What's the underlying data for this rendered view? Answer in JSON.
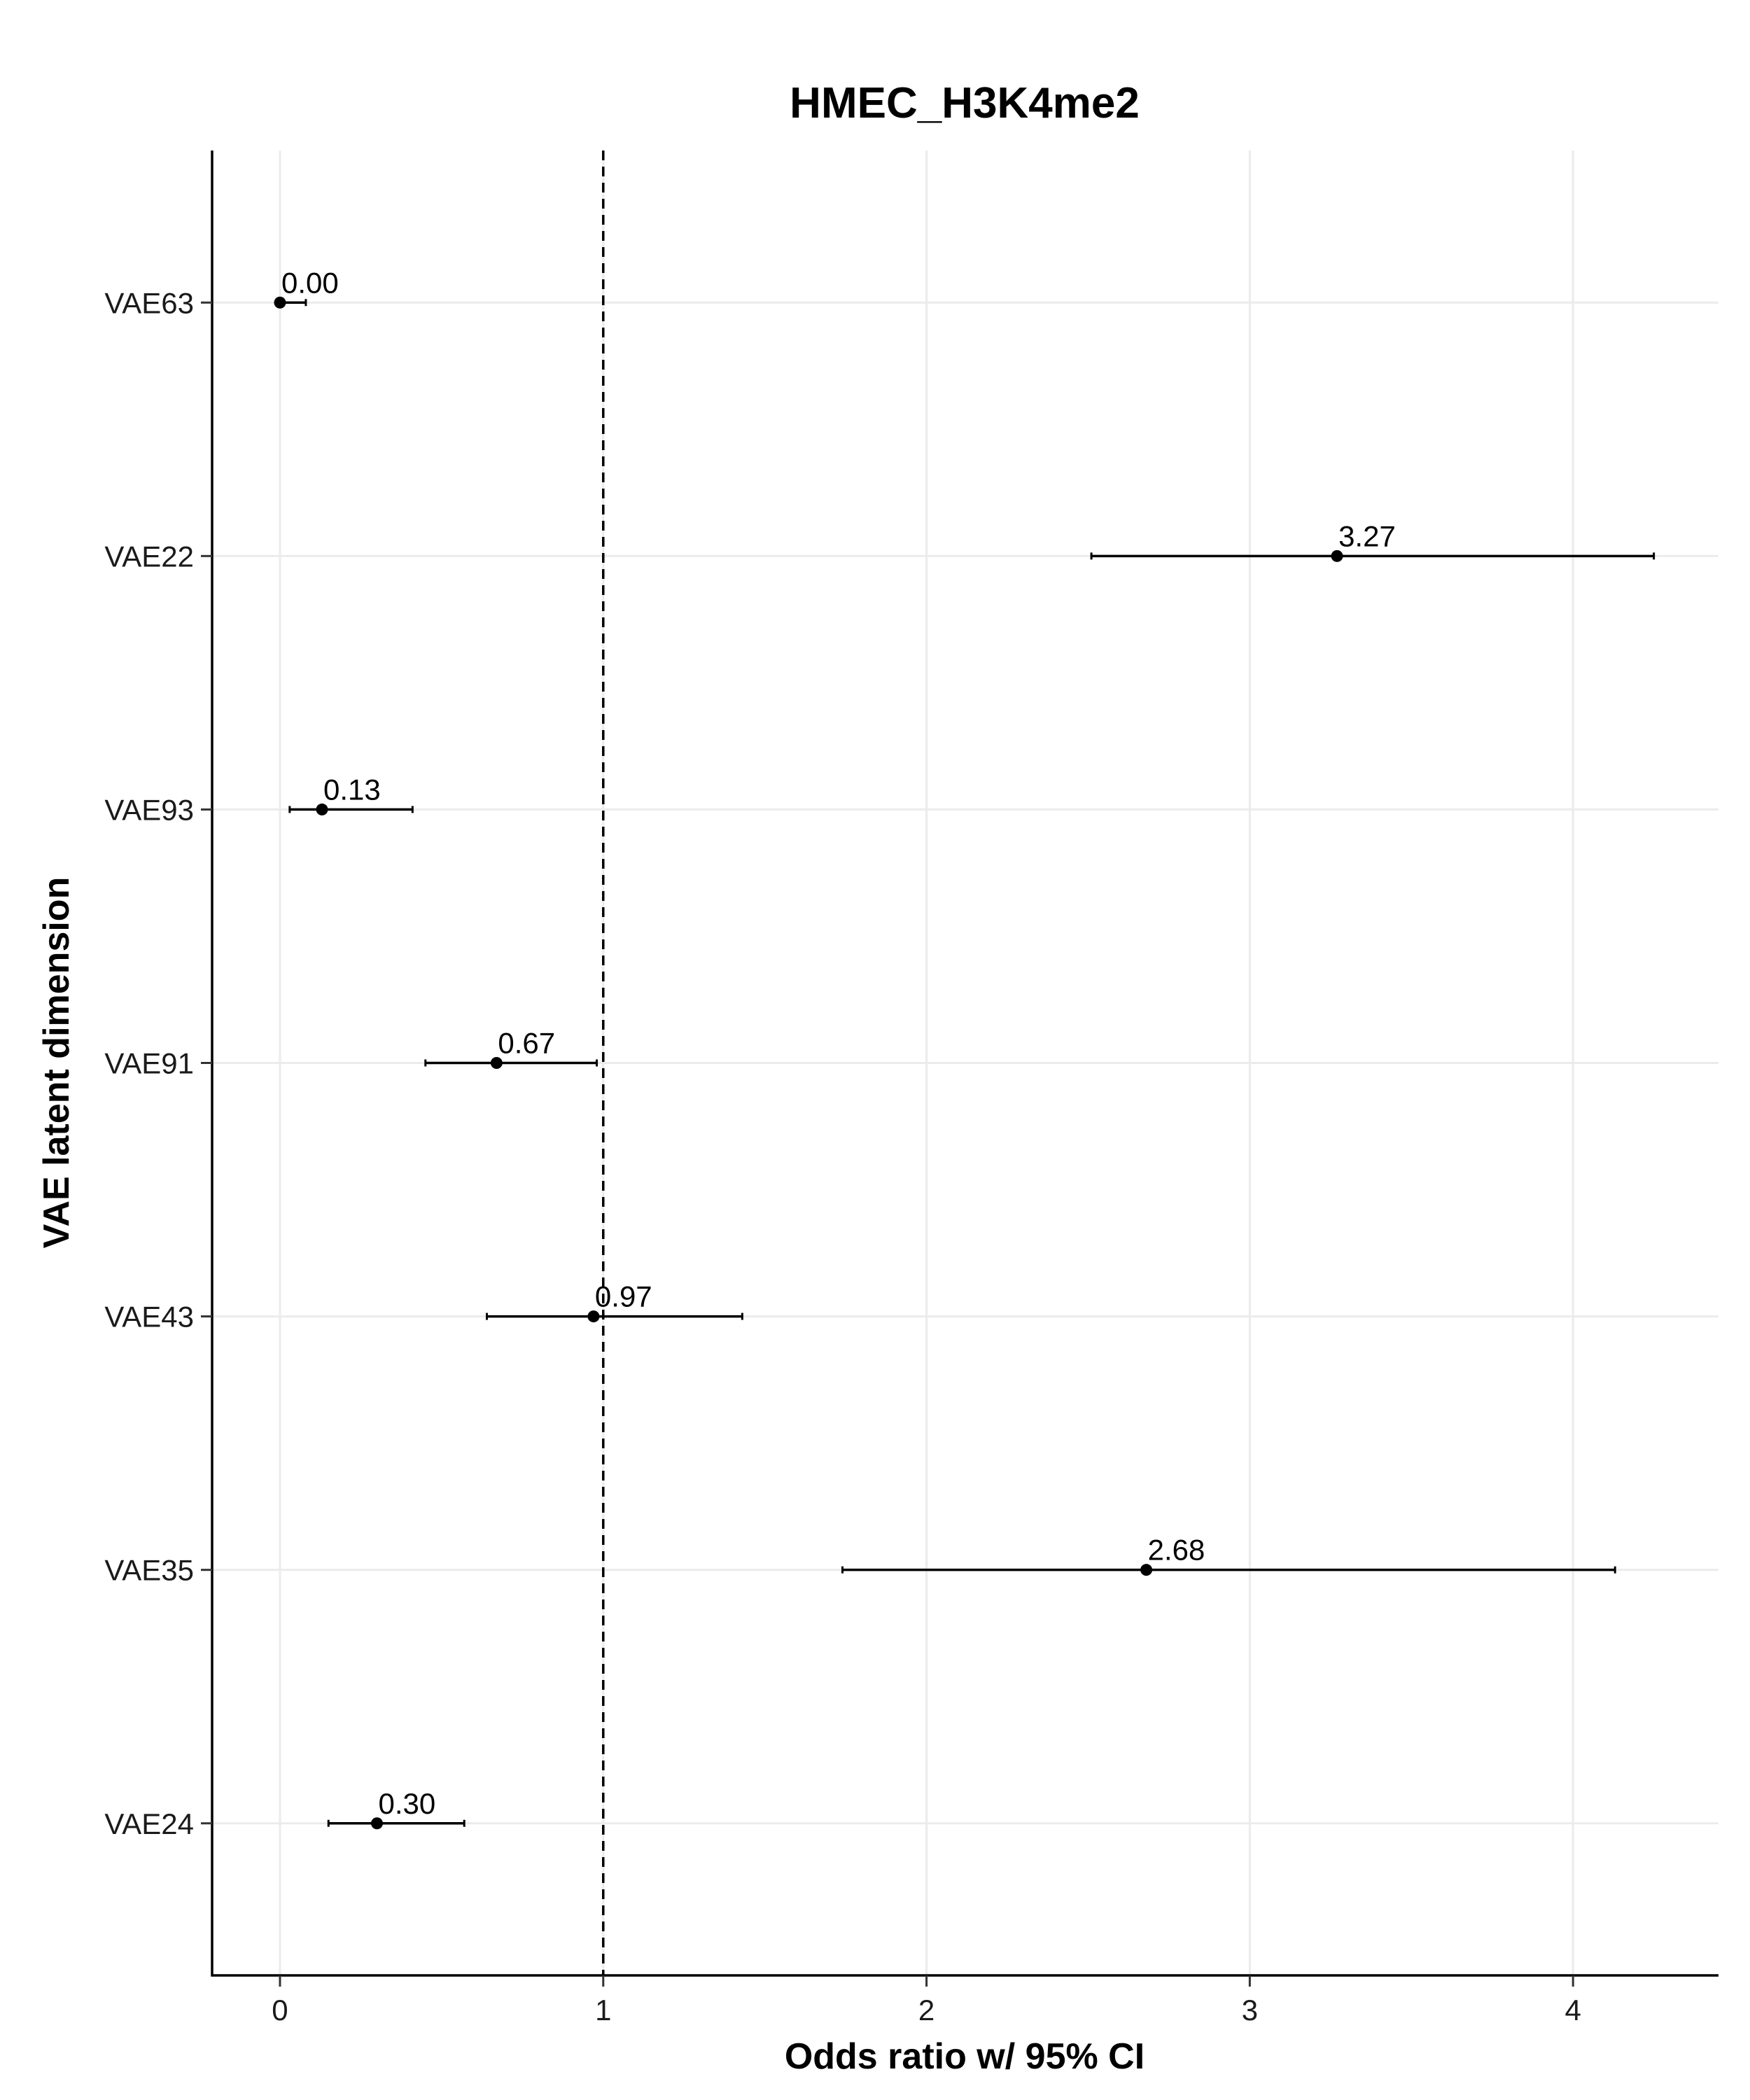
{
  "chart_data": {
    "type": "scatter",
    "title": "HMEC_H3K4me2",
    "xlabel": "Odds ratio w/ 95% CI",
    "ylabel": "VAE latent dimension",
    "xlim": [
      -0.21,
      4.45
    ],
    "x_ticks": [
      0,
      1,
      2,
      3,
      4
    ],
    "x_tick_labels": [
      "0",
      "1",
      "2",
      "3",
      "4"
    ],
    "reference_line": 1,
    "grid": true,
    "categories": [
      "VAE63",
      "VAE22",
      "VAE93",
      "VAE91",
      "VAE43",
      "VAE35",
      "VAE24"
    ],
    "points": [
      {
        "label": "VAE63",
        "estimate": 0.0,
        "ci_low": 0.0,
        "ci_high": 0.08,
        "text": "0.00"
      },
      {
        "label": "VAE22",
        "estimate": 3.27,
        "ci_low": 2.51,
        "ci_high": 4.25,
        "text": "3.27"
      },
      {
        "label": "VAE93",
        "estimate": 0.13,
        "ci_low": 0.03,
        "ci_high": 0.41,
        "text": "0.13"
      },
      {
        "label": "VAE91",
        "estimate": 0.67,
        "ci_low": 0.45,
        "ci_high": 0.98,
        "text": "0.67"
      },
      {
        "label": "VAE43",
        "estimate": 0.97,
        "ci_low": 0.64,
        "ci_high": 1.43,
        "text": "0.97"
      },
      {
        "label": "VAE35",
        "estimate": 2.68,
        "ci_low": 1.74,
        "ci_high": 4.13,
        "text": "2.68"
      },
      {
        "label": "VAE24",
        "estimate": 0.3,
        "ci_low": 0.15,
        "ci_high": 0.57,
        "text": "0.30"
      }
    ]
  }
}
